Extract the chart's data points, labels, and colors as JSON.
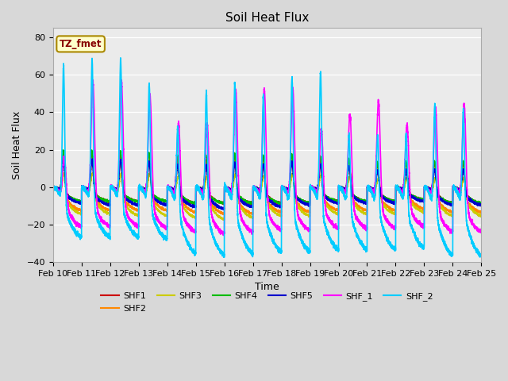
{
  "title": "Soil Heat Flux",
  "xlabel": "Time",
  "ylabel": "Soil Heat Flux",
  "ylim": [
    -40,
    85
  ],
  "yticks": [
    -40,
    -20,
    0,
    20,
    40,
    60,
    80
  ],
  "plot_bg_color": "#ebebeb",
  "fig_bg_color": "#d8d8d8",
  "legend_label": "TZ_fmet",
  "series_labels": [
    "SHF1",
    "SHF2",
    "SHF3",
    "SHF4",
    "SHF5",
    "SHF_1",
    "SHF_2"
  ],
  "series_colors": [
    "#cc0000",
    "#ff8800",
    "#cccc00",
    "#00bb00",
    "#0000cc",
    "#ff00ff",
    "#00ccff"
  ],
  "series_linewidths": [
    1.0,
    1.0,
    1.0,
    1.0,
    1.2,
    1.2,
    1.2
  ],
  "n_days": 15,
  "n_pts_per_day": 480,
  "xtick_labels": [
    "Feb 10",
    "Feb 11",
    "Feb 12",
    "Feb 13",
    "Feb 14",
    "Feb 15",
    "Feb 16",
    "Feb 17",
    "Feb 18",
    "Feb 19",
    "Feb 20",
    "Feb 21",
    "Feb 22",
    "Feb 23",
    "Feb 24",
    "Feb 25"
  ],
  "xtick_positions": [
    0,
    1,
    2,
    3,
    4,
    5,
    6,
    7,
    8,
    9,
    10,
    11,
    12,
    13,
    14,
    15
  ]
}
